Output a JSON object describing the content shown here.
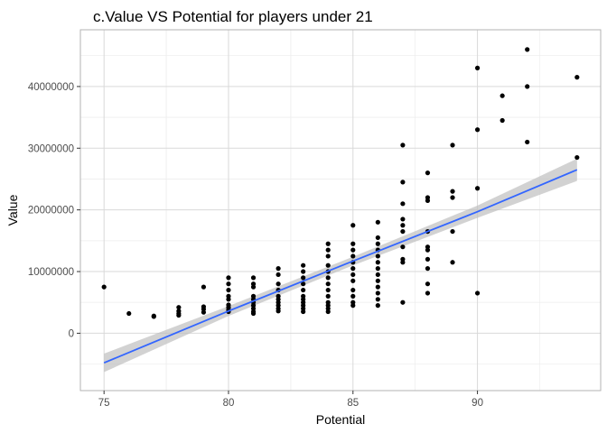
{
  "chart_data": {
    "type": "scatter",
    "title": "c.Value  VS Potential for players under 21",
    "xlabel": "Potential",
    "ylabel": "Value",
    "xlim": [
      74.05,
      94.95
    ],
    "ylim": [
      -9300000,
      49200000
    ],
    "x_ticks": [
      75,
      80,
      85,
      90
    ],
    "x_tick_labels": [
      "75",
      "80",
      "85",
      "90"
    ],
    "y_ticks": [
      0,
      10000000,
      20000000,
      30000000,
      40000000
    ],
    "y_tick_labels": [
      "0",
      "10000000",
      "20000000",
      "30000000",
      "40000000"
    ],
    "grid": true,
    "theme": "light",
    "point_color": "#000000",
    "trend": {
      "method": "linear",
      "color": "#3366ff",
      "ribbon_color": "#bfbfbf",
      "x": [
        75,
        80,
        85,
        90,
        94
      ],
      "fit": [
        -4800000,
        3600000,
        11700000,
        19700000,
        26500000
      ],
      "lower": [
        -6300000,
        2800000,
        11000000,
        18700000,
        24700000
      ],
      "upper": [
        -3300000,
        4400000,
        12400000,
        20700000,
        28300000
      ]
    },
    "points": [
      [
        75,
        7500000
      ],
      [
        76,
        3200000
      ],
      [
        77,
        2800000
      ],
      [
        77,
        2700000
      ],
      [
        78,
        4200000
      ],
      [
        78,
        3600000
      ],
      [
        78,
        3200000
      ],
      [
        78,
        2900000
      ],
      [
        79,
        7500000
      ],
      [
        79,
        4300000
      ],
      [
        79,
        3900000
      ],
      [
        79,
        3400000
      ],
      [
        80,
        9000000
      ],
      [
        80,
        8000000
      ],
      [
        80,
        7000000
      ],
      [
        80,
        6000000
      ],
      [
        80,
        5500000
      ],
      [
        80,
        4600000
      ],
      [
        80,
        4200000
      ],
      [
        80,
        3800000
      ],
      [
        80,
        3500000
      ],
      [
        81,
        9000000
      ],
      [
        81,
        8000000
      ],
      [
        81,
        7500000
      ],
      [
        81,
        6000000
      ],
      [
        81,
        5500000
      ],
      [
        81,
        5000000
      ],
      [
        81,
        4500000
      ],
      [
        81,
        4000000
      ],
      [
        81,
        3500000
      ],
      [
        81,
        3200000
      ],
      [
        82,
        10500000
      ],
      [
        82,
        9500000
      ],
      [
        82,
        8000000
      ],
      [
        82,
        7000000
      ],
      [
        82,
        6000000
      ],
      [
        82,
        5500000
      ],
      [
        82,
        5000000
      ],
      [
        82,
        4500000
      ],
      [
        82,
        4000000
      ],
      [
        82,
        3600000
      ],
      [
        83,
        11000000
      ],
      [
        83,
        10000000
      ],
      [
        83,
        9000000
      ],
      [
        83,
        8000000
      ],
      [
        83,
        7000000
      ],
      [
        83,
        6000000
      ],
      [
        83,
        5500000
      ],
      [
        83,
        5000000
      ],
      [
        83,
        4500000
      ],
      [
        83,
        4000000
      ],
      [
        83,
        3500000
      ],
      [
        84,
        14500000
      ],
      [
        84,
        13500000
      ],
      [
        84,
        12500000
      ],
      [
        84,
        11000000
      ],
      [
        84,
        10000000
      ],
      [
        84,
        9000000
      ],
      [
        84,
        8000000
      ],
      [
        84,
        7000000
      ],
      [
        84,
        6000000
      ],
      [
        84,
        5000000
      ],
      [
        84,
        4500000
      ],
      [
        84,
        4000000
      ],
      [
        84,
        3500000
      ],
      [
        85,
        17500000
      ],
      [
        85,
        14500000
      ],
      [
        85,
        13500000
      ],
      [
        85,
        12500000
      ],
      [
        85,
        11500000
      ],
      [
        85,
        10500000
      ],
      [
        85,
        9500000
      ],
      [
        85,
        8500000
      ],
      [
        85,
        7000000
      ],
      [
        85,
        6000000
      ],
      [
        85,
        5000000
      ],
      [
        85,
        4500000
      ],
      [
        86,
        18000000
      ],
      [
        86,
        15500000
      ],
      [
        86,
        14500000
      ],
      [
        86,
        13500000
      ],
      [
        86,
        12500000
      ],
      [
        86,
        11500000
      ],
      [
        86,
        10500000
      ],
      [
        86,
        9500000
      ],
      [
        86,
        8500000
      ],
      [
        86,
        7500000
      ],
      [
        86,
        6500000
      ],
      [
        86,
        5500000
      ],
      [
        86,
        4500000
      ],
      [
        87,
        30500000
      ],
      [
        87,
        24500000
      ],
      [
        87,
        21000000
      ],
      [
        87,
        18500000
      ],
      [
        87,
        17500000
      ],
      [
        87,
        16500000
      ],
      [
        87,
        14000000
      ],
      [
        87,
        12000000
      ],
      [
        87,
        11500000
      ],
      [
        87,
        5000000
      ],
      [
        88,
        26000000
      ],
      [
        88,
        22000000
      ],
      [
        88,
        21500000
      ],
      [
        88,
        16500000
      ],
      [
        88,
        14000000
      ],
      [
        88,
        13500000
      ],
      [
        88,
        12000000
      ],
      [
        88,
        10500000
      ],
      [
        88,
        8000000
      ],
      [
        88,
        6500000
      ],
      [
        89,
        30500000
      ],
      [
        89,
        23000000
      ],
      [
        89,
        22000000
      ],
      [
        89,
        16500000
      ],
      [
        89,
        11500000
      ],
      [
        90,
        43000000
      ],
      [
        90,
        33000000
      ],
      [
        90,
        23500000
      ],
      [
        90,
        6500000
      ],
      [
        91,
        38500000
      ],
      [
        91,
        34500000
      ],
      [
        92,
        46000000
      ],
      [
        92,
        40000000
      ],
      [
        92,
        31000000
      ],
      [
        94,
        41500000
      ],
      [
        94,
        28500000
      ]
    ]
  }
}
